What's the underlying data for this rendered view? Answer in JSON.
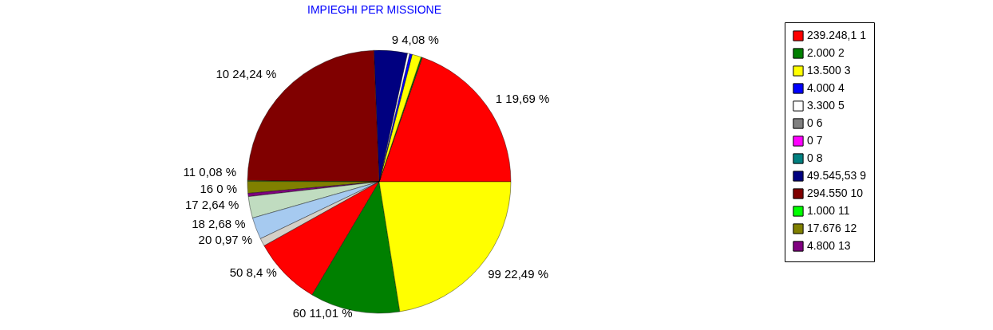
{
  "chart_data": {
    "type": "pie",
    "title": "IMPIEGHI PER MISSIONE",
    "categories": [
      "239.248,1 1",
      "2.000 2",
      "13.500 3",
      "4.000 4",
      "3.300 5",
      "0 6",
      "0 7",
      "0 8",
      "49.545,53 9",
      "294.550 10",
      "1.000 11",
      "17.676 12",
      "4.800 13",
      null,
      null,
      null,
      null,
      null,
      null,
      null
    ],
    "values": [
      19.69,
      0.16,
      1.11,
      0.33,
      0.27,
      0,
      0,
      0,
      4.08,
      24.24,
      0.08,
      1.45,
      0.4,
      0,
      2.64,
      2.68,
      0.97,
      8.4,
      11.01,
      22.49
    ],
    "value_labels": [
      "1 19,69 %",
      null,
      null,
      null,
      null,
      null,
      null,
      null,
      "9 4,08 %",
      "10 24,24 %",
      "11 0,08 %",
      null,
      null,
      "16 0 %",
      "17 2,64 %",
      "18 2,68 %",
      "20 0,97 %",
      "50 8,4 %",
      "60 11,01 %",
      "99 22,49 %"
    ],
    "colors": [
      "#ff0000",
      "#008000",
      "#ffff00",
      "#0000ff",
      "#ffffff",
      "#808080",
      "#ff00ff",
      "#008080",
      "#000080",
      "#800000",
      "#00ff00",
      "#808000",
      "#800080",
      "#c0c0c0",
      "#c0dcc0",
      "#a6caf0",
      "#d4d0c8",
      "#ff0000",
      "#008000",
      "#ffff00"
    ],
    "legend": "right"
  }
}
